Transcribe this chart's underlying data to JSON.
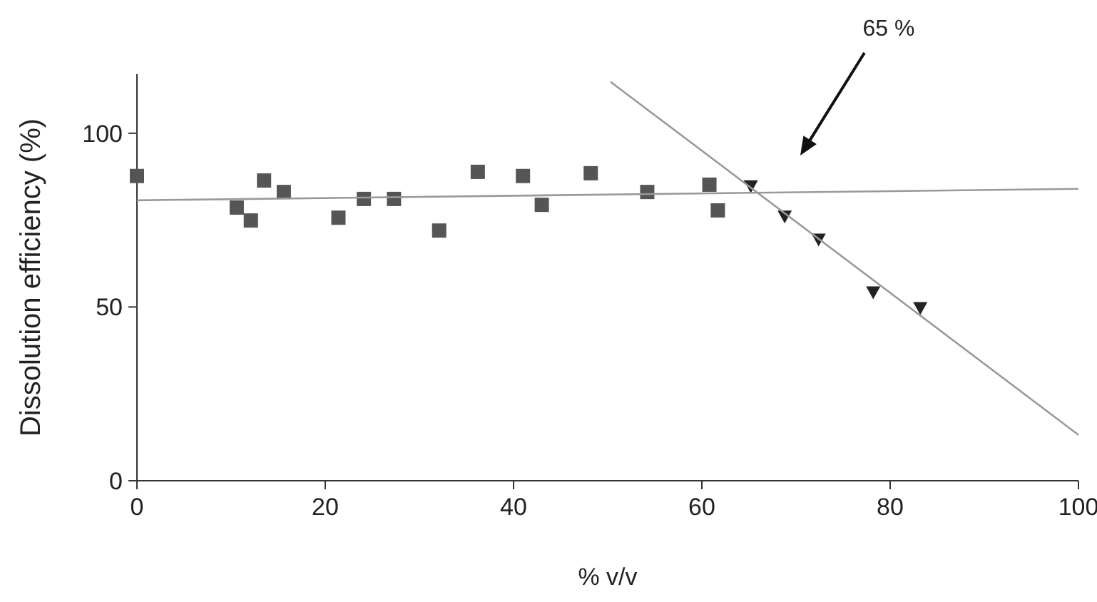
{
  "chart_data": {
    "type": "scatter",
    "xlabel": "% v/v",
    "ylabel": "Dissolution efficiency (%)",
    "xlim": [
      0,
      100
    ],
    "ylim": [
      0,
      117
    ],
    "xticks": [
      0,
      20,
      40,
      60,
      80,
      100
    ],
    "yticks": [
      0,
      50,
      100
    ],
    "grid": false,
    "annotations": [
      "65 %"
    ],
    "series": [
      {
        "marker": "square",
        "color": "#555555",
        "x": [
          0,
          10.6,
          12.1,
          13.5,
          15.6,
          21.4,
          24.1,
          27.3,
          32.1,
          36.2,
          41,
          43,
          48.2,
          54.2,
          60.8,
          61.7
        ],
        "values": [
          87.7,
          78.6,
          74.9,
          86.4,
          83.1,
          75.7,
          81.1,
          81.1,
          72,
          88.9,
          87.7,
          79.4,
          88.5,
          83.1,
          85.2,
          77.8
        ]
      },
      {
        "marker": "triangle",
        "color": "#222222",
        "x": [
          65.2,
          68.8,
          72.4,
          78.2,
          83.2
        ],
        "values": [
          84.8,
          76.1,
          69.5,
          54.3,
          49.8
        ]
      },
      {
        "type": "line",
        "color": "#999999",
        "x": [
          0,
          100
        ],
        "values": [
          80.7,
          84
        ]
      },
      {
        "type": "line",
        "color": "#999999",
        "x": [
          50.3,
          100
        ],
        "values": [
          114.8,
          13.2
        ]
      }
    ]
  }
}
